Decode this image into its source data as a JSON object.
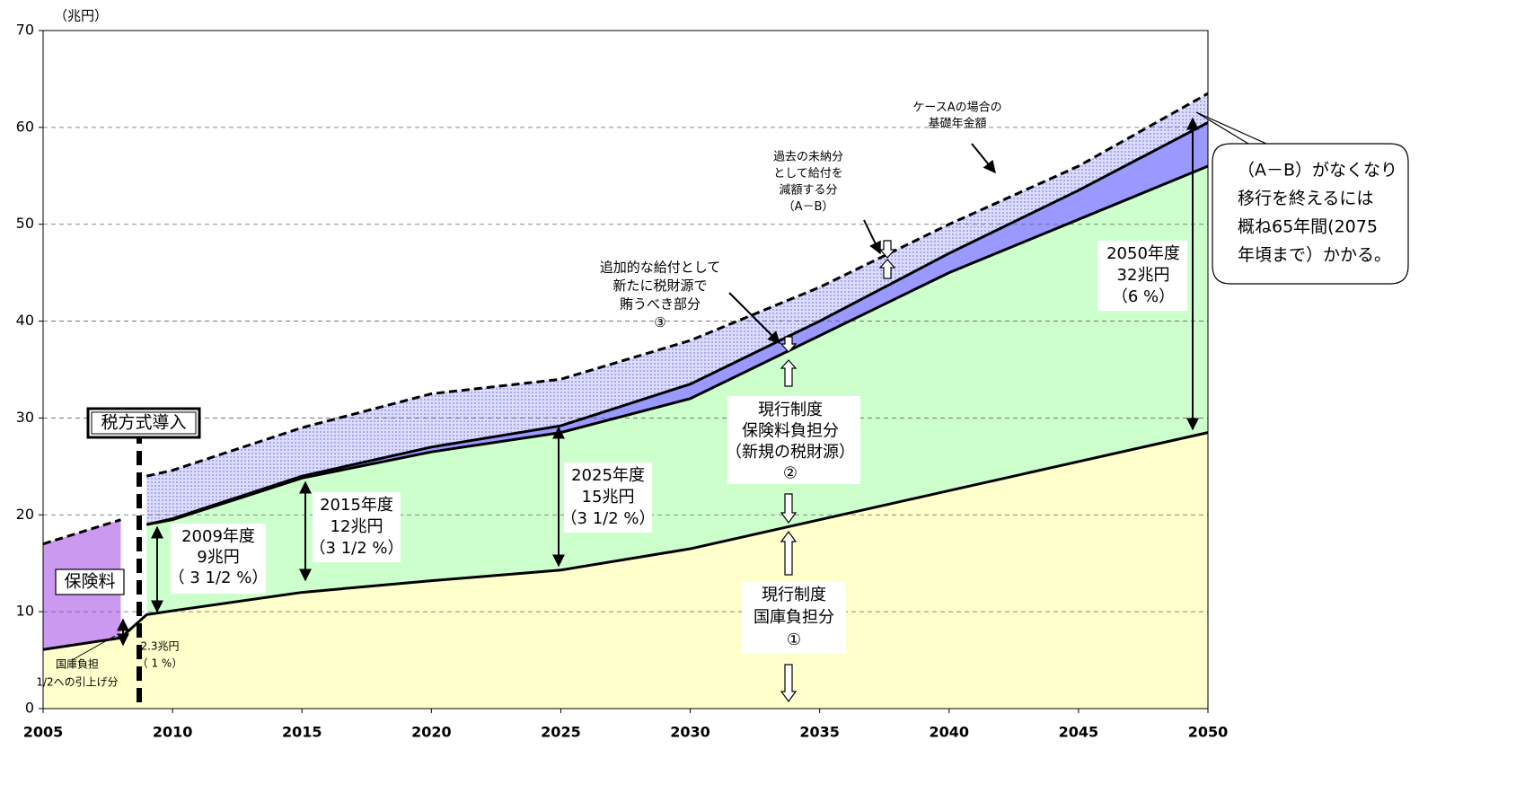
{
  "chart_data": {
    "type": "stacked_area",
    "y_label": "（兆円）",
    "x": [
      2005,
      2008,
      2009,
      2010,
      2015,
      2020,
      2025,
      2030,
      2035,
      2040,
      2045,
      2050
    ],
    "series": [
      {
        "color": "#ffffcc",
        "line_style": "solid",
        "values": [
          6.1,
          7.3,
          9.7,
          10.1,
          12.0,
          13.2,
          14.3,
          16.5,
          19.5,
          22.5,
          25.5,
          28.5
        ]
      },
      {
        "color": "#cc99f0",
        "line_style": "dashed",
        "values": [
          10.9,
          12.2,
          null,
          null,
          null,
          null,
          null,
          null,
          null,
          null,
          null,
          null
        ]
      },
      {
        "color": "#ccffcc",
        "line_style": "solid",
        "values": [
          null,
          null,
          9.3,
          9.4,
          11.8,
          13.3,
          14.2,
          15.5,
          19.0,
          22.5,
          25.0,
          27.5
        ]
      },
      {
        "color": "#9999ff",
        "line_style": "solid",
        "values": [
          null,
          null,
          0,
          0.1,
          0.2,
          0.5,
          0.7,
          1.5,
          1.5,
          2.0,
          3.0,
          4.5
        ]
      },
      {
        "color": "#ccccff",
        "line_style": "dashed",
        "pattern": true,
        "values": [
          null,
          null,
          5.0,
          5.0,
          5.0,
          5.5,
          4.8,
          4.5,
          3.5,
          3.0,
          2.5,
          3.0
        ]
      }
    ],
    "xlim": [
      2005,
      2050
    ],
    "xticks": [
      2005,
      2010,
      2015,
      2020,
      2025,
      2030,
      2035,
      2040,
      2045,
      2050
    ],
    "ylim": [
      0,
      70
    ],
    "yticks": [
      0,
      10,
      20,
      30,
      40,
      50,
      60,
      70
    ],
    "grid": true,
    "annotations": [
      [
        "税方式導入"
      ],
      [
        "保険料"
      ],
      [
        "2009年度",
        "9兆円",
        "（ 3 1/2 %）"
      ],
      [
        "2015年度",
        "12兆円",
        "（3 1/2 %）"
      ],
      [
        "2025年度",
        "15兆円",
        "（3 1/2 %）"
      ],
      [
        "2050年度",
        "32兆円",
        "（6 %）"
      ],
      [
        "現行制度",
        "保険料負担分",
        "（新規の税財源）",
        "②"
      ],
      [
        "現行制度",
        "国庫負担分",
        "①"
      ],
      [
        "追加的な給付として",
        "新たに税財源で",
        "賄うべき部分",
        "③"
      ],
      [
        "過去の未納分",
        "として給付を",
        "減額する分",
        "（A－B）"
      ],
      [
        "ケースAの場合の",
        "基礎年金額"
      ],
      [
        "2.3兆円",
        "（ 1 %）"
      ],
      [
        "国庫負担",
        "1/2への引上げ分"
      ],
      [
        "（A－B）がなくなり",
        "移行を終えるには",
        "概ね65年間(2075",
        "年頃まで）かかる。"
      ]
    ]
  }
}
